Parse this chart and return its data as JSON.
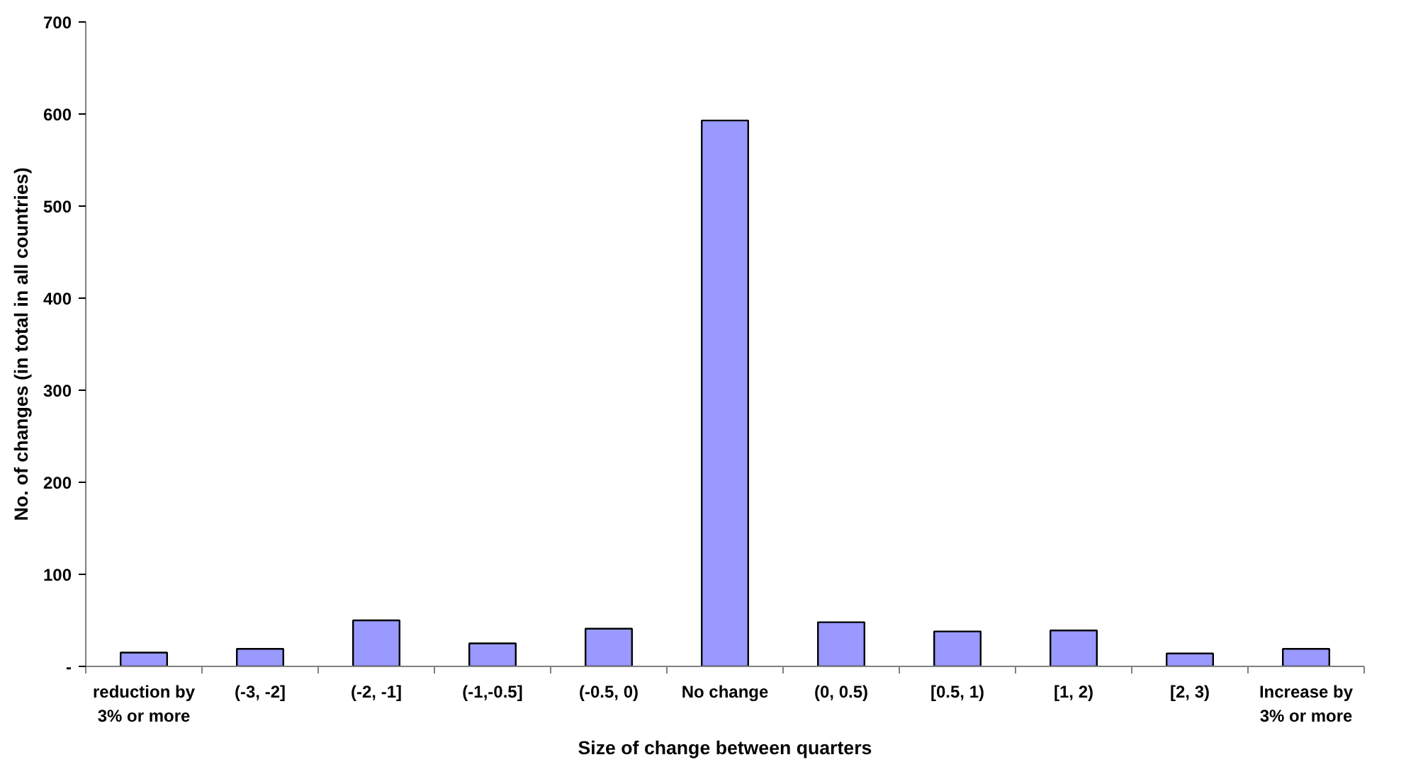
{
  "chart_data": {
    "type": "bar",
    "xlabel": "Size of change between quarters",
    "ylabel": "No. of changes (in total in all countries)",
    "categories": [
      "reduction by 3% or more",
      "(-3, -2]",
      "(-2, -1]",
      "(-1,-0.5]",
      "(-0.5, 0)",
      "No change",
      "(0, 0.5)",
      "[0.5, 1)",
      "[1, 2)",
      "[2, 3)",
      "Increase by 3% or more"
    ],
    "values": [
      15,
      19,
      50,
      25,
      41,
      593,
      48,
      38,
      39,
      14,
      19
    ],
    "color": "#9999ff",
    "ylim": [
      0,
      700
    ],
    "yticks": [
      {
        "value": 0,
        "label": "-"
      },
      100,
      200,
      300,
      400,
      500,
      600,
      700
    ],
    "grid": false
  }
}
